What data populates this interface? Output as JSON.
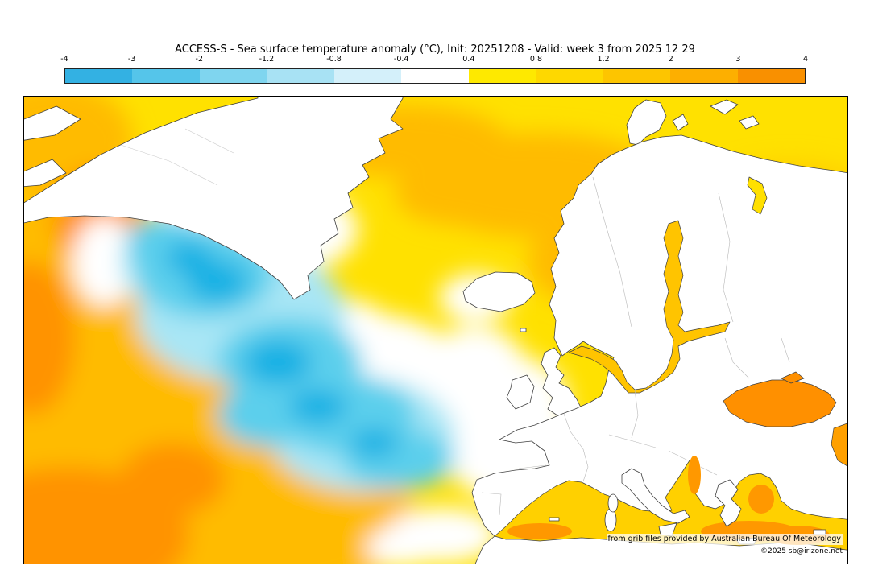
{
  "title": "ACCESS-S - Sea surface temperature anomaly (°C), Init: 20251208 - Valid: week 3 from 2025 12 29",
  "colorbar": {
    "ticks": [
      "-4",
      "-3",
      "-2",
      "-1.2",
      "-0.8",
      "-0.4",
      "0.4",
      "0.8",
      "1.2",
      "2",
      "3",
      "4"
    ],
    "colors": [
      "#33b1e3",
      "#55c5ea",
      "#7fd5ef",
      "#a8e2f4",
      "#d4f0fa",
      "#ffffff",
      "#fee900",
      "#fed800",
      "#fdc500",
      "#fdaf00",
      "#f99000"
    ],
    "unit": "°C"
  },
  "map": {
    "credit_line1": "from grib files provided by Australian Bureau Of Meteorology",
    "credit_line2": "©2025 sb@irizone.net",
    "colors": {
      "warm_anomaly": "#ffbb00",
      "strong_warm_anomaly": "#ff9300",
      "cold_anomaly": "#5bcfec",
      "strong_cold_anomaly": "#17b1e4",
      "near_zero": "#ffffff",
      "base_field": "#ffe100",
      "land": "#ffffff",
      "coastline": "#404040"
    }
  },
  "chart_data": {
    "type": "heatmap",
    "title": "ACCESS-S - Sea surface temperature anomaly (°C), Init: 20251208 - Valid: week 3 from 2025 12 29",
    "variable": "Sea surface temperature anomaly",
    "units": "°C",
    "model": "ACCESS-S",
    "init_date": "20251208",
    "valid_period": "week 3 from 2025 12 29",
    "colorbar": {
      "orientation": "horizontal",
      "tick_values": [
        -4,
        -3,
        -2,
        -1.2,
        -0.8,
        -0.4,
        0.4,
        0.8,
        1.2,
        2,
        3,
        4
      ]
    },
    "region_shown": "North Atlantic Ocean, Greenland, Iceland, Scandinavia, Europe, Mediterranean Sea, Black Sea",
    "qualitative_features": [
      "Warm anomalies of roughly +0.4 to +3 °C over most of the subtropical and western North Atlantic, strongest toward the southwest corner",
      "Cold anomaly patch of roughly -0.4 to -2 °C south and southeast of Greenland in the central North Atlantic",
      "Near-zero (white) band between the cold patch and the surrounding warm field, including waters northwest of the British Isles and the Bay of Biscay",
      "Warm anomalies along the Norwegian Sea, Baltic Sea and Mediterranean Sea",
      "Strong warm anomaly of roughly +2 to +4 °C in the Black Sea and near the Caspian edge of the map"
    ]
  }
}
